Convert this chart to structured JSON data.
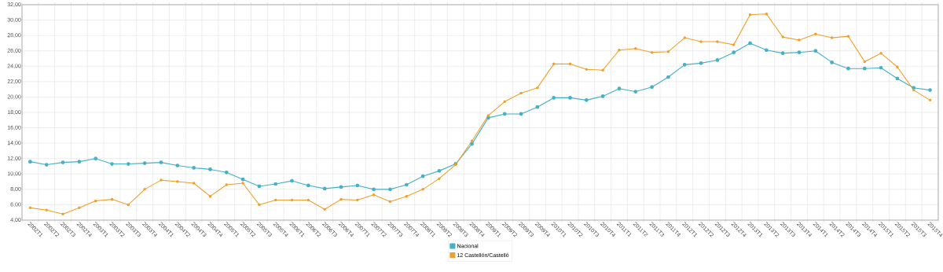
{
  "chart_data": {
    "type": "line",
    "categories": [
      "2002T1",
      "2002T2",
      "2002T3",
      "2002T4",
      "2003T1",
      "2003T2",
      "2003T3",
      "2003T4",
      "2004T1",
      "2004T2",
      "2004T3",
      "2004T4",
      "2005T1",
      "2005T2",
      "2005T3",
      "2005T4",
      "2006T1",
      "2006T2",
      "2006T3",
      "2006T4",
      "2007T1",
      "2007T2",
      "2007T3",
      "2007T4",
      "2008T1",
      "2008T2",
      "2008T3",
      "2008T4",
      "2009T1",
      "2009T2",
      "2009T3",
      "2009T4",
      "2010T1",
      "2010T2",
      "2010T3",
      "2010T4",
      "2011T1",
      "2011T2",
      "2011T3",
      "2011T4",
      "2012T1",
      "2012T2",
      "2012T3",
      "2012T4",
      "2013T1",
      "2013T2",
      "2013T3",
      "2013T4",
      "2014T1",
      "2014T2",
      "2014T3",
      "2014T4",
      "2015T1",
      "2015T2",
      "2015T3",
      "2015T4"
    ],
    "series": [
      {
        "name": "Nacional",
        "color": "#45b0c6",
        "values": [
          11.6,
          11.2,
          11.5,
          11.6,
          12.0,
          11.3,
          11.3,
          11.4,
          11.5,
          11.1,
          10.8,
          10.6,
          10.2,
          9.3,
          8.4,
          8.7,
          9.1,
          8.5,
          8.1,
          8.3,
          8.5,
          8.0,
          8.0,
          8.6,
          9.7,
          10.4,
          11.3,
          13.9,
          17.3,
          17.8,
          17.8,
          18.7,
          19.9,
          19.9,
          19.6,
          20.1,
          21.1,
          20.7,
          21.3,
          22.6,
          24.2,
          24.4,
          24.8,
          25.8,
          27.0,
          26.1,
          25.7,
          25.8,
          26.0,
          24.5,
          23.7,
          23.7,
          23.8,
          22.4,
          21.2,
          20.9
        ]
      },
      {
        "name": "12 Castellón/Castelló",
        "color": "#f0a02c",
        "values": [
          5.6,
          5.3,
          4.8,
          5.6,
          6.5,
          6.7,
          6.0,
          8.0,
          9.2,
          9.0,
          8.8,
          7.1,
          8.6,
          8.8,
          6.0,
          6.6,
          6.6,
          6.6,
          5.4,
          6.7,
          6.6,
          7.3,
          6.4,
          7.1,
          8.0,
          9.4,
          11.2,
          14.3,
          17.6,
          19.4,
          20.5,
          21.2,
          24.3,
          24.3,
          23.6,
          23.5,
          26.1,
          26.3,
          25.8,
          25.9,
          27.7,
          27.2,
          27.2,
          26.8,
          30.7,
          30.8,
          27.8,
          27.4,
          28.2,
          27.7,
          27.9,
          24.6,
          25.7,
          23.9,
          20.9,
          19.6
        ]
      }
    ],
    "ylim": [
      4,
      32
    ],
    "yticks": [
      {
        "value": 4,
        "label": "4,00"
      },
      {
        "value": 6,
        "label": "6,00"
      },
      {
        "value": 8,
        "label": "8,00"
      },
      {
        "value": 10,
        "label": "10,00"
      },
      {
        "value": 12,
        "label": "12,00"
      },
      {
        "value": 14,
        "label": "14,00"
      },
      {
        "value": 16,
        "label": "16,00"
      },
      {
        "value": 18,
        "label": "18,00"
      },
      {
        "value": 20,
        "label": "20,00"
      },
      {
        "value": 22,
        "label": "22,00"
      },
      {
        "value": 24,
        "label": "24,00"
      },
      {
        "value": 26,
        "label": "26,00"
      },
      {
        "value": 28,
        "label": "28,00"
      },
      {
        "value": 30,
        "label": "30,00"
      },
      {
        "value": 32,
        "label": "32,00"
      }
    ],
    "grid": true,
    "legend": "bottom",
    "marker": "circle",
    "line_style": "solid"
  }
}
